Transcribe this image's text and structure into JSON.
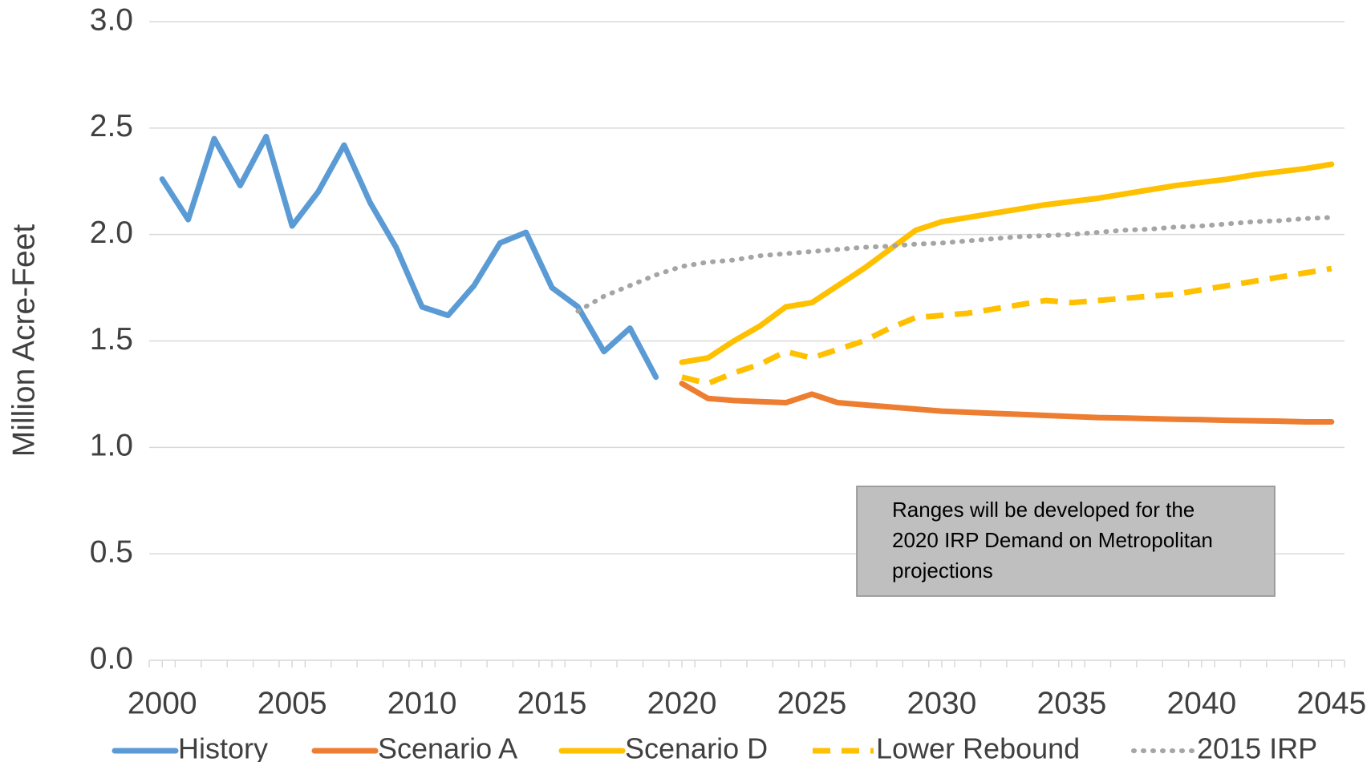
{
  "chart_data": {
    "type": "line",
    "y_label": "Million Acre-Feet",
    "x": [
      2000,
      2001,
      2002,
      2003,
      2004,
      2005,
      2006,
      2007,
      2008,
      2009,
      2010,
      2011,
      2012,
      2013,
      2014,
      2015,
      2016,
      2017,
      2018,
      2019,
      2020,
      2021,
      2022,
      2023,
      2024,
      2025,
      2026,
      2027,
      2028,
      2029,
      2030,
      2031,
      2032,
      2033,
      2034,
      2035,
      2036,
      2037,
      2038,
      2039,
      2040,
      2041,
      2042,
      2043,
      2044,
      2045
    ],
    "xlim": [
      1999.5,
      2045.5
    ],
    "xticks": [
      2000,
      2005,
      2010,
      2015,
      2020,
      2025,
      2030,
      2035,
      2040,
      2045
    ],
    "ylim": [
      0,
      3
    ],
    "yticks": [
      {
        "value": 0,
        "label": "0.0"
      },
      0.5,
      {
        "value": 1,
        "label": "1.0"
      },
      1.5,
      {
        "value": 2,
        "label": "2.0"
      },
      2.5,
      {
        "value": 3,
        "label": "3.0"
      }
    ],
    "grid": true,
    "legend": "bottom",
    "series": [
      {
        "name": "History",
        "color": "#5b9bd5",
        "style": "solid",
        "values": [
          2.26,
          2.07,
          2.45,
          2.23,
          2.46,
          2.04,
          2.2,
          2.42,
          2.15,
          1.94,
          1.66,
          1.62,
          1.76,
          1.96,
          2.01,
          1.75,
          1.66,
          1.45,
          1.56,
          1.33,
          null,
          null,
          null,
          null,
          null,
          null,
          null,
          null,
          null,
          null,
          null,
          null,
          null,
          null,
          null,
          null,
          null,
          null,
          null,
          null,
          null,
          null,
          null,
          null,
          null,
          null
        ]
      },
      {
        "name": "Scenario A",
        "color": "#ed7d31",
        "style": "solid",
        "values": [
          null,
          null,
          null,
          null,
          null,
          null,
          null,
          null,
          null,
          null,
          null,
          null,
          null,
          null,
          null,
          null,
          null,
          null,
          null,
          null,
          1.3,
          1.23,
          1.22,
          1.215,
          1.21,
          1.25,
          1.21,
          1.2,
          1.19,
          1.18,
          1.17,
          1.165,
          1.16,
          1.155,
          1.15,
          1.145,
          1.14,
          1.138,
          1.135,
          1.132,
          1.13,
          1.127,
          1.125,
          1.123,
          1.12,
          1.12
        ]
      },
      {
        "name": "Scenario D",
        "color": "#ffc000",
        "style": "solid",
        "values": [
          null,
          null,
          null,
          null,
          null,
          null,
          null,
          null,
          null,
          null,
          null,
          null,
          null,
          null,
          null,
          null,
          null,
          null,
          null,
          null,
          1.4,
          1.42,
          1.5,
          1.57,
          1.66,
          1.68,
          1.76,
          1.84,
          1.93,
          2.02,
          2.06,
          2.08,
          2.1,
          2.12,
          2.14,
          2.155,
          2.17,
          2.19,
          2.21,
          2.23,
          2.245,
          2.26,
          2.28,
          2.295,
          2.31,
          2.33
        ]
      },
      {
        "name": "Lower Rebound",
        "color": "#ffc000",
        "style": "dashed",
        "values": [
          null,
          null,
          null,
          null,
          null,
          null,
          null,
          null,
          null,
          null,
          null,
          null,
          null,
          null,
          null,
          null,
          null,
          null,
          null,
          null,
          1.33,
          1.3,
          1.35,
          1.39,
          1.45,
          1.42,
          1.46,
          1.5,
          1.56,
          1.61,
          1.62,
          1.63,
          1.65,
          1.67,
          1.69,
          1.68,
          1.69,
          1.7,
          1.71,
          1.72,
          1.74,
          1.76,
          1.78,
          1.8,
          1.82,
          1.84
        ]
      },
      {
        "name": "2015 IRP",
        "color": "#a5a5a5",
        "style": "dotted",
        "values": [
          null,
          null,
          null,
          null,
          null,
          null,
          null,
          null,
          null,
          null,
          null,
          null,
          null,
          null,
          null,
          null,
          1.64,
          1.71,
          1.76,
          1.81,
          1.85,
          1.87,
          1.88,
          1.9,
          1.91,
          1.92,
          1.93,
          1.94,
          1.945,
          1.955,
          1.96,
          1.97,
          1.98,
          1.99,
          1.995,
          2.0,
          2.01,
          2.02,
          2.025,
          2.035,
          2.04,
          2.05,
          2.06,
          2.065,
          2.075,
          2.08
        ]
      }
    ],
    "annotation": [
      "Ranges will be developed for the",
      "2020 IRP Demand on Metropolitan",
      "projections"
    ]
  }
}
